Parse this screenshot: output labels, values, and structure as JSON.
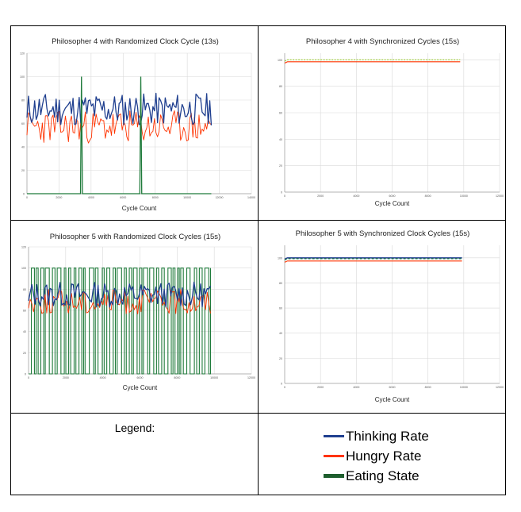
{
  "colors": {
    "thinking": "#1f3f8f",
    "hungry": "#ff3300",
    "eating": "#1e7a3a",
    "grid": "#d9d9d9",
    "axis": "#a0a0a0",
    "synced_eat": "#9acd32"
  },
  "legend": {
    "title": "Legend:",
    "items": [
      {
        "label": "Thinking Rate",
        "color": "#1f3f8f"
      },
      {
        "label": "Hungry Rate",
        "color": "#ff3300"
      },
      {
        "label": "Eating State",
        "color": "#1e5e2e"
      }
    ]
  },
  "chart_data": [
    {
      "type": "line",
      "title": "Philosopher 4 with Randomized Clock Cycle (13s)",
      "xlabel": "Cycle Count",
      "ylabel": "",
      "xlim": [
        0,
        14000
      ],
      "ylim": [
        0,
        120
      ],
      "xticks": [
        0,
        2000,
        4000,
        6000,
        8000,
        10000,
        12000,
        14000
      ],
      "yticks": [
        0,
        20,
        40,
        60,
        80,
        100,
        120
      ],
      "grid": true,
      "pattern": "randomized",
      "x_end": 11500,
      "series": [
        {
          "key": "thinking",
          "base": 72,
          "amp": 14,
          "n": 120
        },
        {
          "key": "hungry",
          "base": 57,
          "amp": 14,
          "n": 120
        },
        {
          "key": "eating",
          "spikes_x": [
            3400,
            7100
          ],
          "spike_value": 100
        }
      ]
    },
    {
      "type": "line",
      "title": "Philosopher 4 with Synchronized Cycles (15s)",
      "xlabel": "Cycle Count",
      "ylabel": "",
      "xlim": [
        0,
        12000
      ],
      "ylim": [
        0,
        105
      ],
      "xticks": [
        0,
        2000,
        4000,
        6000,
        8000,
        10000,
        12000
      ],
      "yticks": [
        0,
        20,
        40,
        60,
        80,
        100
      ],
      "grid": true,
      "pattern": "synchronized",
      "x_end": 9800,
      "series": [
        {
          "key": "eating",
          "value": 100
        },
        {
          "key": "hungry",
          "value": 98.5
        }
      ]
    },
    {
      "type": "line",
      "title": "Philosopher 5 with Randomized Clock Cycles (15s)",
      "xlabel": "Cycle Count",
      "ylabel": "",
      "xlim": [
        0,
        12000
      ],
      "ylim": [
        0,
        120
      ],
      "xticks": [
        0,
        2000,
        4000,
        6000,
        8000,
        10000,
        12000
      ],
      "yticks": [
        0,
        20,
        40,
        60,
        80,
        100,
        120
      ],
      "grid": true,
      "pattern": "randomized",
      "x_end": 9800,
      "series": [
        {
          "key": "thinking",
          "base": 75,
          "amp": 12,
          "n": 110
        },
        {
          "key": "hungry",
          "base": 68,
          "amp": 12,
          "n": 110
        },
        {
          "key": "eating",
          "square": true,
          "high": 100,
          "low": 0,
          "n": 70
        }
      ]
    },
    {
      "type": "line",
      "title": "Philosopher 5 with Synchronized Clock Cycles (15s)",
      "xlabel": "Cycle Count",
      "ylabel": "",
      "xlim": [
        0,
        12000
      ],
      "ylim": [
        0,
        110
      ],
      "xticks": [
        0,
        2000,
        4000,
        6000,
        8000,
        10000,
        12000
      ],
      "yticks": [
        0,
        20,
        40,
        60,
        80,
        100
      ],
      "grid": true,
      "pattern": "synchronized",
      "x_end": 9900,
      "series": [
        {
          "key": "thinking",
          "value": 100
        },
        {
          "key": "eating",
          "value": 99.3
        },
        {
          "key": "hungry",
          "value": 97.5
        }
      ]
    }
  ]
}
